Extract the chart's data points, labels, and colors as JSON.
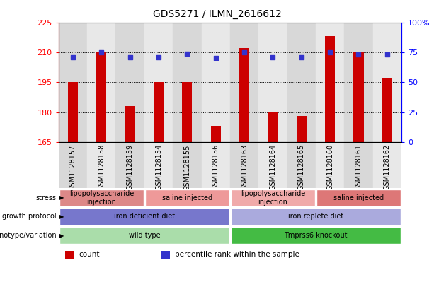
{
  "title": "GDS5271 / ILMN_2616612",
  "samples": [
    "GSM1128157",
    "GSM1128158",
    "GSM1128159",
    "GSM1128154",
    "GSM1128155",
    "GSM1128156",
    "GSM1128163",
    "GSM1128164",
    "GSM1128165",
    "GSM1128160",
    "GSM1128161",
    "GSM1128162"
  ],
  "counts": [
    195,
    210,
    183,
    195,
    195,
    173,
    212,
    180,
    178,
    218,
    210,
    197
  ],
  "percentiles": [
    71,
    75,
    71,
    71,
    74,
    70,
    75,
    71,
    71,
    75,
    73,
    73
  ],
  "ylim_left": [
    165,
    225
  ],
  "ylim_right": [
    0,
    100
  ],
  "yticks_left": [
    165,
    180,
    195,
    210,
    225
  ],
  "yticks_right": [
    0,
    25,
    50,
    75,
    100
  ],
  "ytick_labels_right": [
    "0",
    "25",
    "50",
    "75",
    "100%"
  ],
  "bar_color": "#cc0000",
  "dot_color": "#3333cc",
  "annotation_rows": [
    {
      "label": "genotype/variation",
      "segments": [
        {
          "text": "wild type",
          "span": [
            0,
            6
          ],
          "color": "#aaddaa"
        },
        {
          "text": "Tmprss6 knockout",
          "span": [
            6,
            12
          ],
          "color": "#44bb44"
        }
      ]
    },
    {
      "label": "growth protocol",
      "segments": [
        {
          "text": "iron deficient diet",
          "span": [
            0,
            6
          ],
          "color": "#7777cc"
        },
        {
          "text": "iron replete diet",
          "span": [
            6,
            12
          ],
          "color": "#aaaadd"
        }
      ]
    },
    {
      "label": "stress",
      "segments": [
        {
          "text": "lipopolysaccharide\ninjection",
          "span": [
            0,
            3
          ],
          "color": "#dd8888"
        },
        {
          "text": "saline injected",
          "span": [
            3,
            6
          ],
          "color": "#ee9999"
        },
        {
          "text": "lipopolysaccharide\ninjection",
          "span": [
            6,
            9
          ],
          "color": "#f0aaaa"
        },
        {
          "text": "saline injected",
          "span": [
            9,
            12
          ],
          "color": "#dd7777"
        }
      ]
    }
  ],
  "legend_items": [
    {
      "color": "#cc0000",
      "label": "count"
    },
    {
      "color": "#3333cc",
      "label": "percentile rank within the sample"
    }
  ],
  "col_bg_even": "#d8d8d8",
  "col_bg_odd": "#e8e8e8"
}
